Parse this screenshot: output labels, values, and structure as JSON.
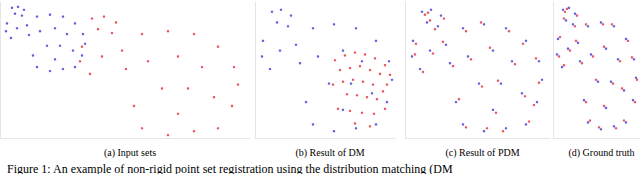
{
  "caption": "Figure 1: An example of non-rigid point set registration using the distribution matching (DM",
  "chart_data": [
    {
      "type": "scatter",
      "title": "(a) Input sets",
      "xlim": [
        0,
        250
      ],
      "ylim": [
        0,
        140
      ],
      "tick_labels": false,
      "grid": false,
      "marker": "circle",
      "series": [
        {
          "color": "#3b3bd9",
          "x": [
            12,
            18,
            24,
            15,
            22,
            7,
            6,
            11,
            17,
            27,
            29,
            37,
            50,
            63,
            75,
            83,
            85,
            40,
            55,
            67,
            47,
            60,
            73,
            33,
            37,
            50,
            63,
            75,
            82,
            55
          ],
          "values": [
            134,
            135,
            132,
            128,
            126,
            118,
            110,
            103,
            113,
            116,
            106,
            125,
            127,
            125,
            118,
            107,
            97,
            110,
            113,
            107,
            95,
            95,
            90,
            85,
            73,
            69,
            71,
            73,
            85,
            81
          ]
        },
        {
          "color": "#e0303a",
          "x": [
            92,
            104,
            116,
            98,
            112,
            82,
            80,
            90,
            102,
            122,
            126,
            142,
            168,
            194,
            218,
            234,
            238,
            148,
            178,
            202,
            162,
            188,
            214,
            134,
            142,
            168,
            194,
            218,
            232,
            178
          ],
          "values": [
            123,
            125,
            119,
            112,
            108,
            94,
            79,
            66,
            84,
            90,
            71,
            107,
            110,
            107,
            94,
            73,
            55,
            79,
            84,
            73,
            51,
            51,
            42,
            33,
            10,
            3,
            7,
            10,
            33,
            25
          ]
        }
      ]
    },
    {
      "type": "scatter",
      "title": "(b) Result of DM",
      "xlim": [
        0,
        140
      ],
      "ylim": [
        0,
        140
      ],
      "tick_labels": false,
      "grid": false,
      "marker": "circle",
      "series": [
        {
          "color": "#3b3bd9",
          "x": [
            17,
            26,
            36,
            22,
            33,
            8,
            7,
            15,
            25,
            41,
            45,
            58,
            79,
            101,
            121,
            134,
            137,
            63,
            88,
            107,
            74,
            96,
            117,
            51,
            58,
            79,
            101,
            121,
            132,
            88
          ],
          "values": [
            130,
            132,
            126,
            119,
            115,
            100,
            84,
            71,
            90,
            96,
            77,
            113,
            117,
            113,
            100,
            79,
            60,
            84,
            90,
            79,
            56,
            56,
            46,
            37,
            14,
            7,
            10,
            14,
            37,
            29
          ]
        },
        {
          "color": "#e0303a",
          "x": [
            80,
            90,
            100,
            110,
            120,
            130,
            135,
            85,
            95,
            105,
            115,
            125,
            132,
            78,
            88,
            98,
            108,
            118,
            128,
            92,
            102,
            112,
            122,
            83,
            95,
            107,
            119,
            130,
            100,
            115
          ],
          "values": [
            80,
            85,
            88,
            86,
            82,
            75,
            65,
            70,
            72,
            74,
            70,
            66,
            55,
            55,
            58,
            60,
            58,
            55,
            48,
            45,
            44,
            42,
            40,
            30,
            28,
            26,
            25,
            30,
            15,
            12
          ]
        }
      ]
    },
    {
      "type": "scatter",
      "title": "(c) Result of PDM",
      "xlim": [
        0,
        145
      ],
      "ylim": [
        0,
        140
      ],
      "tick_labels": false,
      "grid": false,
      "marker": "circle",
      "series": [
        {
          "color": "#3b3bd9",
          "x": [
            17,
            26,
            36,
            22,
            33,
            8,
            7,
            15,
            25,
            41,
            45,
            58,
            79,
            101,
            121,
            134,
            137,
            63,
            88,
            107,
            74,
            96,
            117,
            51,
            58,
            79,
            101,
            121,
            132,
            88
          ],
          "values": [
            130,
            132,
            126,
            119,
            115,
            100,
            84,
            71,
            90,
            96,
            77,
            113,
            117,
            113,
            100,
            79,
            60,
            84,
            90,
            79,
            56,
            56,
            46,
            37,
            14,
            7,
            10,
            14,
            37,
            29
          ]
        },
        {
          "color": "#e0303a",
          "x": [
            20,
            23,
            39,
            25,
            30,
            11,
            10,
            18,
            28,
            38,
            48,
            61,
            76,
            104,
            118,
            131,
            134,
            66,
            85,
            110,
            77,
            93,
            120,
            54,
            61,
            82,
            98,
            124,
            129,
            91
          ],
          "values": [
            127,
            129,
            123,
            121,
            112,
            97,
            86,
            68,
            87,
            99,
            74,
            110,
            119,
            110,
            97,
            82,
            57,
            81,
            93,
            76,
            53,
            59,
            43,
            40,
            11,
            10,
            7,
            17,
            34,
            26
          ]
        }
      ]
    },
    {
      "type": "scatter",
      "title": "(d) Ground truth",
      "xlim": [
        0,
        87
      ],
      "ylim": [
        0,
        140
      ],
      "tick_labels": false,
      "grid": false,
      "marker": "circle",
      "series": [
        {
          "color": "#3b3bd9",
          "x": [
            10,
            16,
            22,
            13,
            20,
            5,
            4,
            9,
            15,
            25,
            27,
            35,
            48,
            61,
            73,
            81,
            83,
            38,
            53,
            65,
            45,
            58,
            71,
            31,
            35,
            48,
            61,
            73,
            80,
            53
          ],
          "values": [
            132,
            134,
            128,
            121,
            117,
            102,
            86,
            73,
            92,
            98,
            79,
            115,
            119,
            115,
            102,
            81,
            62,
            86,
            92,
            81,
            58,
            58,
            49,
            39,
            16,
            9,
            12,
            16,
            39,
            31
          ]
        },
        {
          "color": "#e0303a",
          "x": [
            12,
            14,
            24,
            11,
            22,
            7,
            6,
            11,
            17,
            23,
            29,
            33,
            50,
            59,
            75,
            79,
            84,
            40,
            51,
            67,
            43,
            60,
            69,
            33,
            37,
            46,
            63,
            71,
            82,
            51
          ],
          "values": [
            130,
            133,
            126,
            123,
            115,
            104,
            84,
            75,
            90,
            100,
            77,
            117,
            117,
            117,
            100,
            83,
            60,
            84,
            94,
            79,
            60,
            56,
            51,
            37,
            18,
            11,
            10,
            18,
            37,
            33
          ]
        }
      ]
    }
  ]
}
